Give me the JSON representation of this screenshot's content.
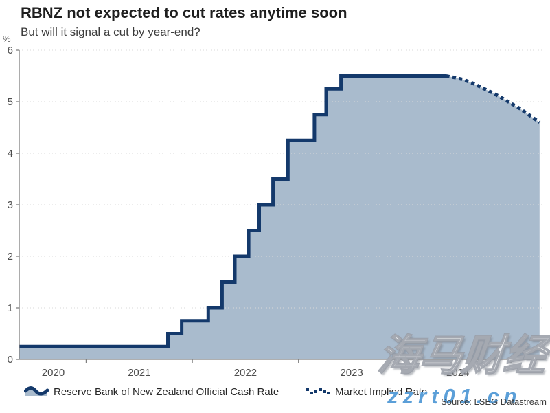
{
  "header": {
    "title": "RBNZ not expected to cut rates anytime soon",
    "subtitle": "But will it signal a cut by year-end?"
  },
  "chart_data": {
    "type": "line",
    "title": "RBNZ not expected to cut rates anytime soon",
    "subtitle": "But will it signal a cut by year-end?",
    "unit": "%",
    "grid": true,
    "legend_position": "bottom",
    "x_axis": {
      "min": 2020.37,
      "max": 2025.31,
      "tick_positions": [
        2021,
        2022,
        2023,
        2024,
        2025
      ],
      "labels": [
        {
          "text": "2020",
          "pos": 2020.69
        },
        {
          "text": "2021",
          "pos": 2021.5
        },
        {
          "text": "2022",
          "pos": 2022.5
        },
        {
          "text": "2023",
          "pos": 2023.5
        },
        {
          "text": "2024",
          "pos": 2024.5
        }
      ]
    },
    "y_axis": {
      "min": 0,
      "max": 6,
      "ticks": [
        0,
        1,
        2,
        3,
        4,
        5,
        6
      ]
    },
    "series": [
      {
        "name": "Reserve Bank of New Zealand Official Cash Rate",
        "style": "step-solid",
        "line_color": "#14396b",
        "area_fill": "#a9bbcd",
        "points": [
          [
            2020.37,
            0.25
          ],
          [
            2021.77,
            0.5
          ],
          [
            2021.9,
            0.75
          ],
          [
            2022.15,
            1.0
          ],
          [
            2022.28,
            1.5
          ],
          [
            2022.4,
            2.0
          ],
          [
            2022.53,
            2.5
          ],
          [
            2022.63,
            3.0
          ],
          [
            2022.76,
            3.5
          ],
          [
            2022.9,
            4.25
          ],
          [
            2023.15,
            4.75
          ],
          [
            2023.26,
            5.25
          ],
          [
            2023.4,
            5.5
          ],
          [
            2024.39,
            5.5
          ]
        ]
      },
      {
        "name": "Market Implied Rate",
        "style": "dotted",
        "line_color": "#14396b",
        "points": [
          [
            2024.39,
            5.5
          ],
          [
            2024.47,
            5.47
          ],
          [
            2024.55,
            5.43
          ],
          [
            2024.64,
            5.36
          ],
          [
            2024.73,
            5.27
          ],
          [
            2024.82,
            5.18
          ],
          [
            2024.91,
            5.08
          ],
          [
            2025.0,
            4.97
          ],
          [
            2025.09,
            4.86
          ],
          [
            2025.18,
            4.73
          ],
          [
            2025.27,
            4.6
          ]
        ]
      }
    ]
  },
  "legend": {
    "items": [
      {
        "label": "Reserve Bank of New Zealand Official Cash Rate",
        "icon": "area-wave-icon"
      },
      {
        "label": "Market Implied Rate",
        "icon": "dotted-wave-icon"
      }
    ]
  },
  "footer": {
    "source": "Source: LSEG Datastream"
  },
  "watermarks": {
    "brand": "海马财经",
    "site": "zzrt01.cn"
  },
  "colors": {
    "line_navy": "#14396b",
    "area_fill": "#a9bbcd",
    "gridline": "#d9d9d9",
    "axis": "#7f7f7f",
    "tick_text": "#4d4d4d",
    "watermark_blue": "#5b9fd8"
  }
}
